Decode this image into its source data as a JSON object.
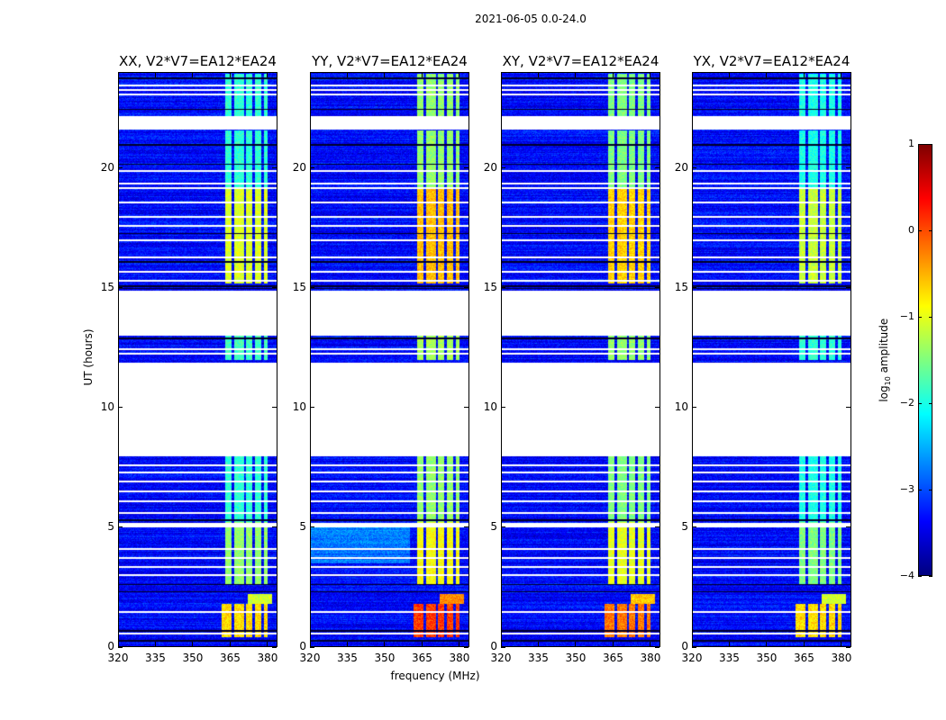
{
  "chart_data": {
    "type": "heatmap",
    "title": "2021-06-05 0.0-24.0",
    "xlabel": "frequency (MHz)",
    "ylabel": "UT (hours)",
    "xlim": [
      320,
      384
    ],
    "ylim": [
      0,
      24
    ],
    "xticks": [
      "320",
      "335",
      "350",
      "365",
      "380"
    ],
    "xtick_values": [
      320,
      335,
      350,
      365,
      380
    ],
    "yticks": [
      "0",
      "5",
      "10",
      "15",
      "20"
    ],
    "ytick_values": [
      0,
      5,
      10,
      15,
      20
    ],
    "panels": [
      {
        "title": "XX, V2*V7=EA12*EA24",
        "band_level": -1.4,
        "burst_level": -0.7
      },
      {
        "title": "YY, V2*V7=EA12*EA24",
        "band_level": -0.9,
        "burst_level": 0.1
      },
      {
        "title": "XY, V2*V7=EA12*EA24",
        "band_level": -1.0,
        "burst_level": -0.2
      },
      {
        "title": "YX, V2*V7=EA12*EA24",
        "band_level": -1.5,
        "burst_level": -0.7
      }
    ],
    "rfi_band_mhz": [
      363,
      380
    ],
    "no_data_ut_ranges": [
      [
        7.95,
        11.9
      ],
      [
        13.0,
        14.9
      ],
      [
        21.65,
        22.2
      ]
    ],
    "colorbar": {
      "label": "log10 amplitude",
      "label_main": "log",
      "label_sub": "10",
      "label_rest": " amplitude",
      "range": [
        -4,
        1
      ],
      "ticks": [
        "1",
        "0",
        "−1",
        "−2",
        "−3",
        "−4"
      ],
      "tick_values": [
        1,
        0,
        -1,
        -2,
        -3,
        -4
      ],
      "colormap": "jet"
    }
  }
}
